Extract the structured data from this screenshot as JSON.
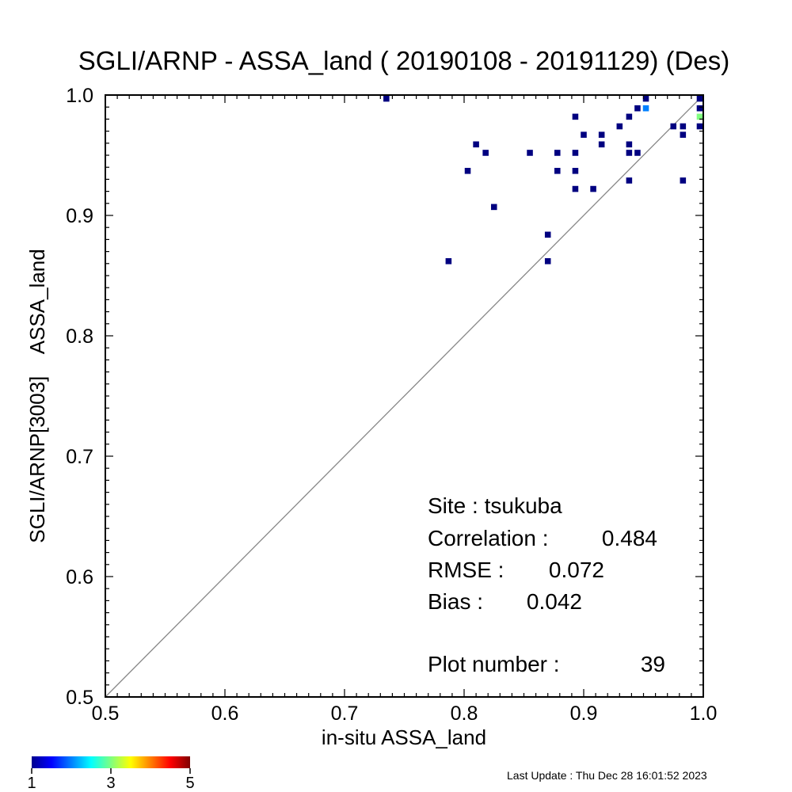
{
  "chart_data": {
    "type": "heatmap",
    "title": "SGLI/ARNP - ASSA_land ( 20190108 - 20191129) (Des)",
    "xlabel": "in-situ ASSA_land",
    "ylabel": "SGLI/ARNP[3003]    ASSA_land",
    "xlim": [
      0.5,
      1.0
    ],
    "ylim": [
      0.5,
      1.0
    ],
    "x_tick_labels": [
      "0.5",
      "0.6",
      "0.7",
      "0.8",
      "0.9",
      "1.0"
    ],
    "y_tick_labels": [
      "0.5",
      "0.6",
      "0.7",
      "0.8",
      "0.9",
      "1.0"
    ],
    "reference_line": "1:1",
    "bin_size": 0.005,
    "points": [
      {
        "x": 0.735,
        "y": 0.997,
        "count": 1
      },
      {
        "x": 0.787,
        "y": 0.862,
        "count": 1
      },
      {
        "x": 0.803,
        "y": 0.937,
        "count": 1
      },
      {
        "x": 0.81,
        "y": 0.959,
        "count": 1
      },
      {
        "x": 0.818,
        "y": 0.952,
        "count": 1
      },
      {
        "x": 0.825,
        "y": 0.907,
        "count": 1
      },
      {
        "x": 0.855,
        "y": 0.952,
        "count": 1
      },
      {
        "x": 0.87,
        "y": 0.884,
        "count": 1
      },
      {
        "x": 0.87,
        "y": 0.862,
        "count": 1
      },
      {
        "x": 0.878,
        "y": 0.952,
        "count": 1
      },
      {
        "x": 0.878,
        "y": 0.937,
        "count": 1
      },
      {
        "x": 0.893,
        "y": 0.982,
        "count": 1
      },
      {
        "x": 0.893,
        "y": 0.952,
        "count": 1
      },
      {
        "x": 0.893,
        "y": 0.937,
        "count": 1
      },
      {
        "x": 0.893,
        "y": 0.922,
        "count": 1
      },
      {
        "x": 0.9,
        "y": 0.967,
        "count": 1
      },
      {
        "x": 0.908,
        "y": 0.922,
        "count": 1
      },
      {
        "x": 0.915,
        "y": 0.967,
        "count": 1
      },
      {
        "x": 0.915,
        "y": 0.959,
        "count": 1
      },
      {
        "x": 0.93,
        "y": 0.974,
        "count": 1
      },
      {
        "x": 0.938,
        "y": 0.982,
        "count": 1
      },
      {
        "x": 0.938,
        "y": 0.959,
        "count": 1
      },
      {
        "x": 0.938,
        "y": 0.952,
        "count": 1
      },
      {
        "x": 0.938,
        "y": 0.929,
        "count": 1
      },
      {
        "x": 0.945,
        "y": 0.989,
        "count": 1
      },
      {
        "x": 0.945,
        "y": 0.952,
        "count": 1
      },
      {
        "x": 0.952,
        "y": 0.997,
        "count": 1
      },
      {
        "x": 0.952,
        "y": 0.989,
        "count": 2
      },
      {
        "x": 0.975,
        "y": 0.974,
        "count": 1
      },
      {
        "x": 0.983,
        "y": 0.974,
        "count": 1
      },
      {
        "x": 0.983,
        "y": 0.967,
        "count": 1
      },
      {
        "x": 0.983,
        "y": 0.929,
        "count": 1
      },
      {
        "x": 0.997,
        "y": 0.997,
        "count": 1
      },
      {
        "x": 0.997,
        "y": 0.989,
        "count": 1
      },
      {
        "x": 0.997,
        "y": 0.982,
        "count": 3
      },
      {
        "x": 0.997,
        "y": 0.974,
        "count": 1
      }
    ],
    "stats": {
      "site_label": "Site : tsukuba",
      "correlation_label": "Correlation :",
      "correlation_value": "0.484",
      "rmse_label": "RMSE :",
      "rmse_value": "0.072",
      "bias_label": "Bias :",
      "bias_value": "0.042",
      "plot_number_label": "Plot number :",
      "plot_number_value": "39"
    },
    "colorbar": {
      "min": 1,
      "max": 5,
      "tick_labels": [
        "1",
        "3",
        "5"
      ],
      "colormap": "jet"
    }
  },
  "footer": {
    "last_update": "Last Update : Thu Dec 28 16:01:52 2023"
  },
  "colors": {
    "axis": "#000000",
    "reference_line": "#888888"
  }
}
